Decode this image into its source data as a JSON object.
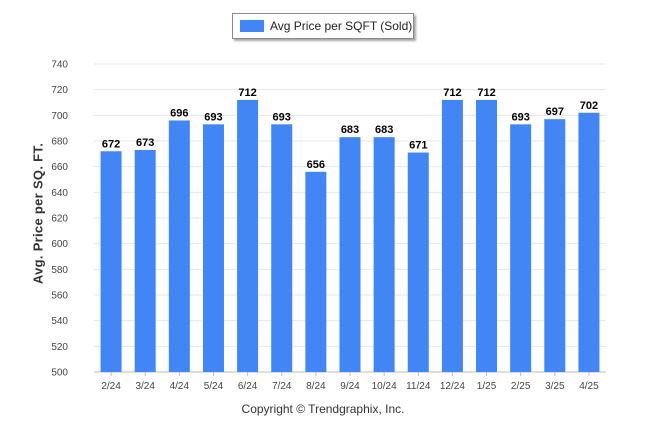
{
  "legend": {
    "label": "Avg Price per SQFT (Sold)",
    "color": "#4285f4"
  },
  "copyright": "Copyright © Trendgraphix, Inc.",
  "chart_data": {
    "type": "bar",
    "title": "",
    "xlabel": "",
    "ylabel": "Avg. Price per SQ. FT.",
    "ylim": [
      500,
      740
    ],
    "yticks": [
      500,
      520,
      540,
      560,
      580,
      600,
      620,
      640,
      660,
      680,
      700,
      720,
      740
    ],
    "grid": true,
    "legend_position": "top",
    "categories": [
      "2/24",
      "3/24",
      "4/24",
      "5/24",
      "6/24",
      "7/24",
      "8/24",
      "9/24",
      "10/24",
      "11/24",
      "12/24",
      "1/25",
      "2/25",
      "3/25",
      "4/25"
    ],
    "series": [
      {
        "name": "Avg Price per SQFT (Sold)",
        "values": [
          672,
          673,
          696,
          693,
          712,
          693,
          656,
          683,
          683,
          671,
          712,
          712,
          693,
          697,
          702
        ]
      }
    ]
  }
}
